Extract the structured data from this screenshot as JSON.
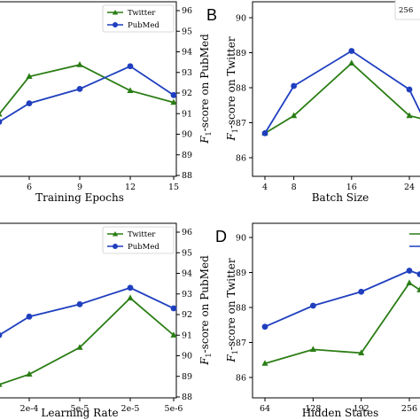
{
  "chart_data": [
    {
      "type": "line",
      "panel_label": "",
      "xlabel": "Training Epochs",
      "ylabel": "",
      "x_ticks": [
        "6",
        "9",
        "12",
        "15"
      ],
      "right_axis_label_main": "F",
      "right_axis_label_sub": "1",
      "right_axis_label_rest": "-score on PubMed",
      "right_ticks": [
        "88",
        "89",
        "90",
        "91",
        "92",
        "93",
        "94",
        "95",
        "96"
      ],
      "x": [
        3,
        6,
        9,
        12,
        15
      ],
      "series": [
        {
          "name": "Twitter",
          "color": "#2a7d14",
          "marker": "triangle",
          "axis": "left",
          "values": [
            87.3,
            88.1,
            88.35,
            87.8,
            87.55
          ]
        },
        {
          "name": "PubMed",
          "color": "#1f3fbf",
          "marker": "circle",
          "axis": "right",
          "values": [
            90.6,
            91.5,
            92.2,
            93.3,
            91.9
          ]
        }
      ],
      "legend_position": "top-right"
    },
    {
      "type": "line",
      "panel_label": "B",
      "xlabel": "Batch Size",
      "ylabel_main": "F",
      "ylabel_sub": "1",
      "ylabel_rest": "-score on Twitter",
      "y_ticks": [
        "86",
        "87",
        "88",
        "89",
        "90"
      ],
      "x_ticks": [
        "4",
        "8",
        "16",
        "24"
      ],
      "x": [
        4,
        8,
        16,
        24,
        26
      ],
      "series": [
        {
          "name": "Twitter",
          "color": "#2a7d14",
          "marker": "triangle",
          "values": [
            86.7,
            87.2,
            88.7,
            87.2,
            87.1
          ]
        },
        {
          "name": "PubMed",
          "color": "#1f3fbf",
          "marker": "circle",
          "values": [
            86.7,
            88.05,
            89.05,
            87.95,
            87.1
          ]
        }
      ],
      "legend_entries": [
        "256"
      ]
    },
    {
      "type": "line",
      "panel_label": "",
      "xlabel": "Learning Rate",
      "x_ticks": [
        "2e-4",
        "5e-5",
        "2e-5",
        "5e-6"
      ],
      "right_axis_label_main": "F",
      "right_axis_label_sub": "1",
      "right_axis_label_rest": "-score on PubMed",
      "right_ticks": [
        "88",
        "89",
        "90",
        "91",
        "92",
        "93",
        "94",
        "95",
        "96"
      ],
      "series": [
        {
          "name": "Twitter",
          "color": "#2a7d14",
          "marker": "triangle",
          "axis": "right",
          "values": [
            88.6,
            89.1,
            90.4,
            92.8,
            91.0
          ]
        },
        {
          "name": "PubMed",
          "color": "#1f3fbf",
          "marker": "circle",
          "axis": "right",
          "values": [
            91.0,
            91.9,
            92.5,
            93.3,
            92.3
          ]
        }
      ],
      "legend_position": "top-right"
    },
    {
      "type": "line",
      "panel_label": "D",
      "xlabel": "Hidden States",
      "ylabel_main": "F",
      "ylabel_sub": "1",
      "ylabel_rest": "-score on Twitter",
      "y_ticks": [
        "86",
        "87",
        "88",
        "89",
        "90"
      ],
      "x_ticks": [
        "64",
        "128",
        "192",
        "256"
      ],
      "x": [
        64,
        128,
        192,
        256,
        270
      ],
      "series": [
        {
          "name": "Twitter",
          "color": "#2a7d14",
          "marker": "triangle",
          "values": [
            86.4,
            86.8,
            86.7,
            88.7,
            88.5
          ]
        },
        {
          "name": "PubMed",
          "color": "#1f3fbf",
          "marker": "circle",
          "values": [
            87.45,
            88.05,
            88.45,
            89.05,
            88.95
          ]
        }
      ]
    }
  ]
}
